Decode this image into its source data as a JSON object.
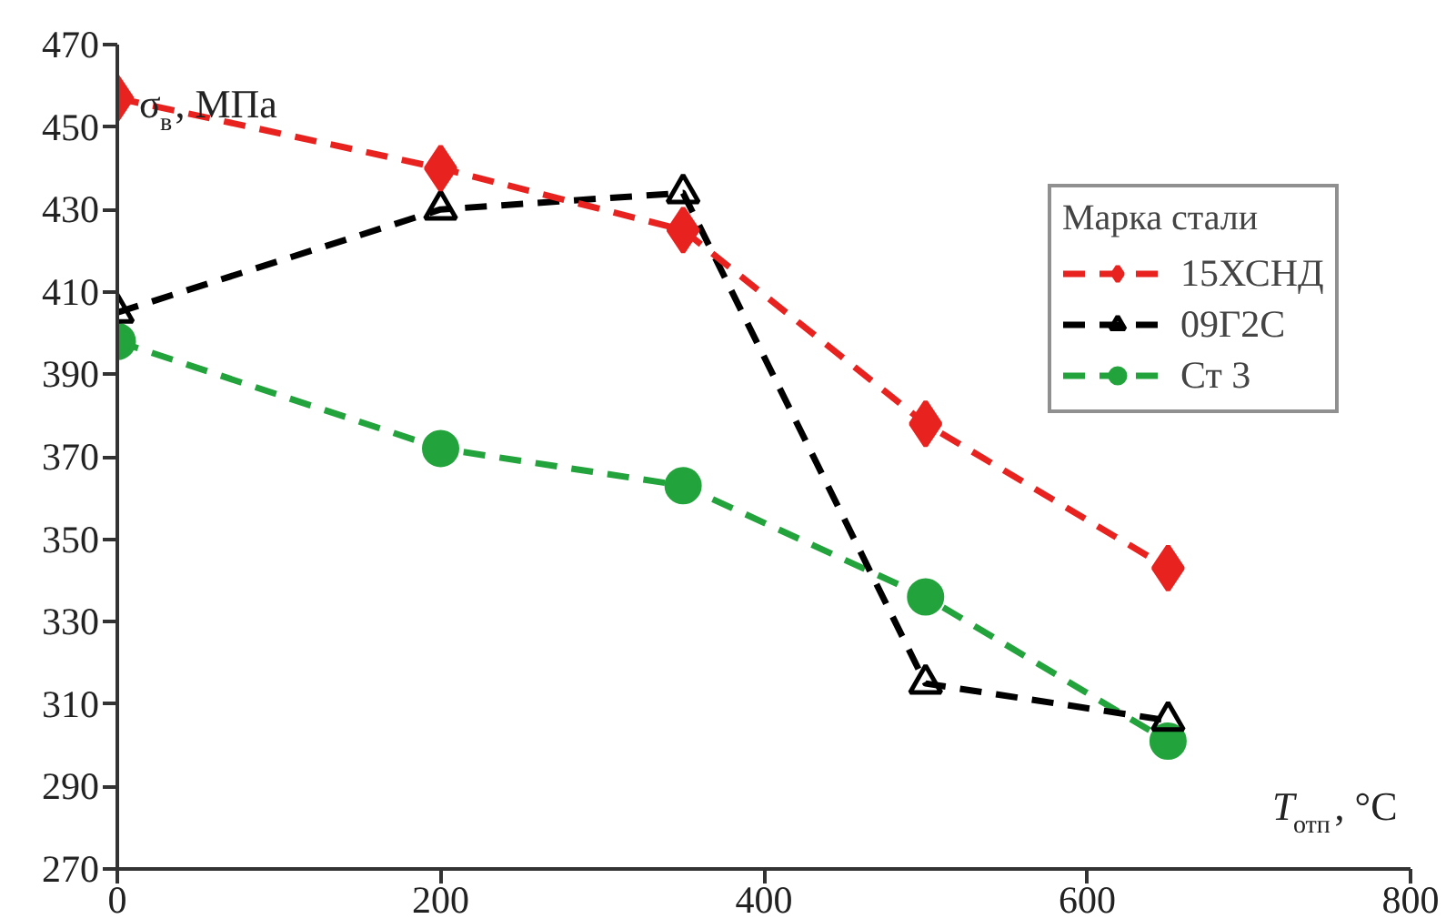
{
  "chart_data": {
    "type": "line",
    "xlabel": "T$_{отп}$, °C",
    "ylabel": "σ$_{в}$, МПа",
    "legend_title": "Марка стали",
    "x": [
      0,
      200,
      350,
      500,
      650
    ],
    "series": [
      {
        "name": "15ХСНД",
        "color": "#e8231f",
        "marker": "diamond",
        "values": [
          457,
          440,
          425,
          378,
          343
        ]
      },
      {
        "name": "09Г2С",
        "color": "#000000",
        "marker": "triangle",
        "values": [
          405,
          430,
          434,
          315,
          306
        ]
      },
      {
        "name": "Ст 3",
        "color": "#22a33c",
        "marker": "circle",
        "values": [
          398,
          372,
          363,
          336,
          301
        ]
      }
    ],
    "xlim": [
      0,
      800
    ],
    "xticks": [
      0,
      200,
      400,
      600,
      800
    ],
    "ylim": [
      270,
      470
    ],
    "yticks": [
      270,
      290,
      310,
      330,
      350,
      370,
      390,
      410,
      430,
      450,
      470
    ],
    "line_style": "dashed",
    "grid": false,
    "legend": "right"
  }
}
